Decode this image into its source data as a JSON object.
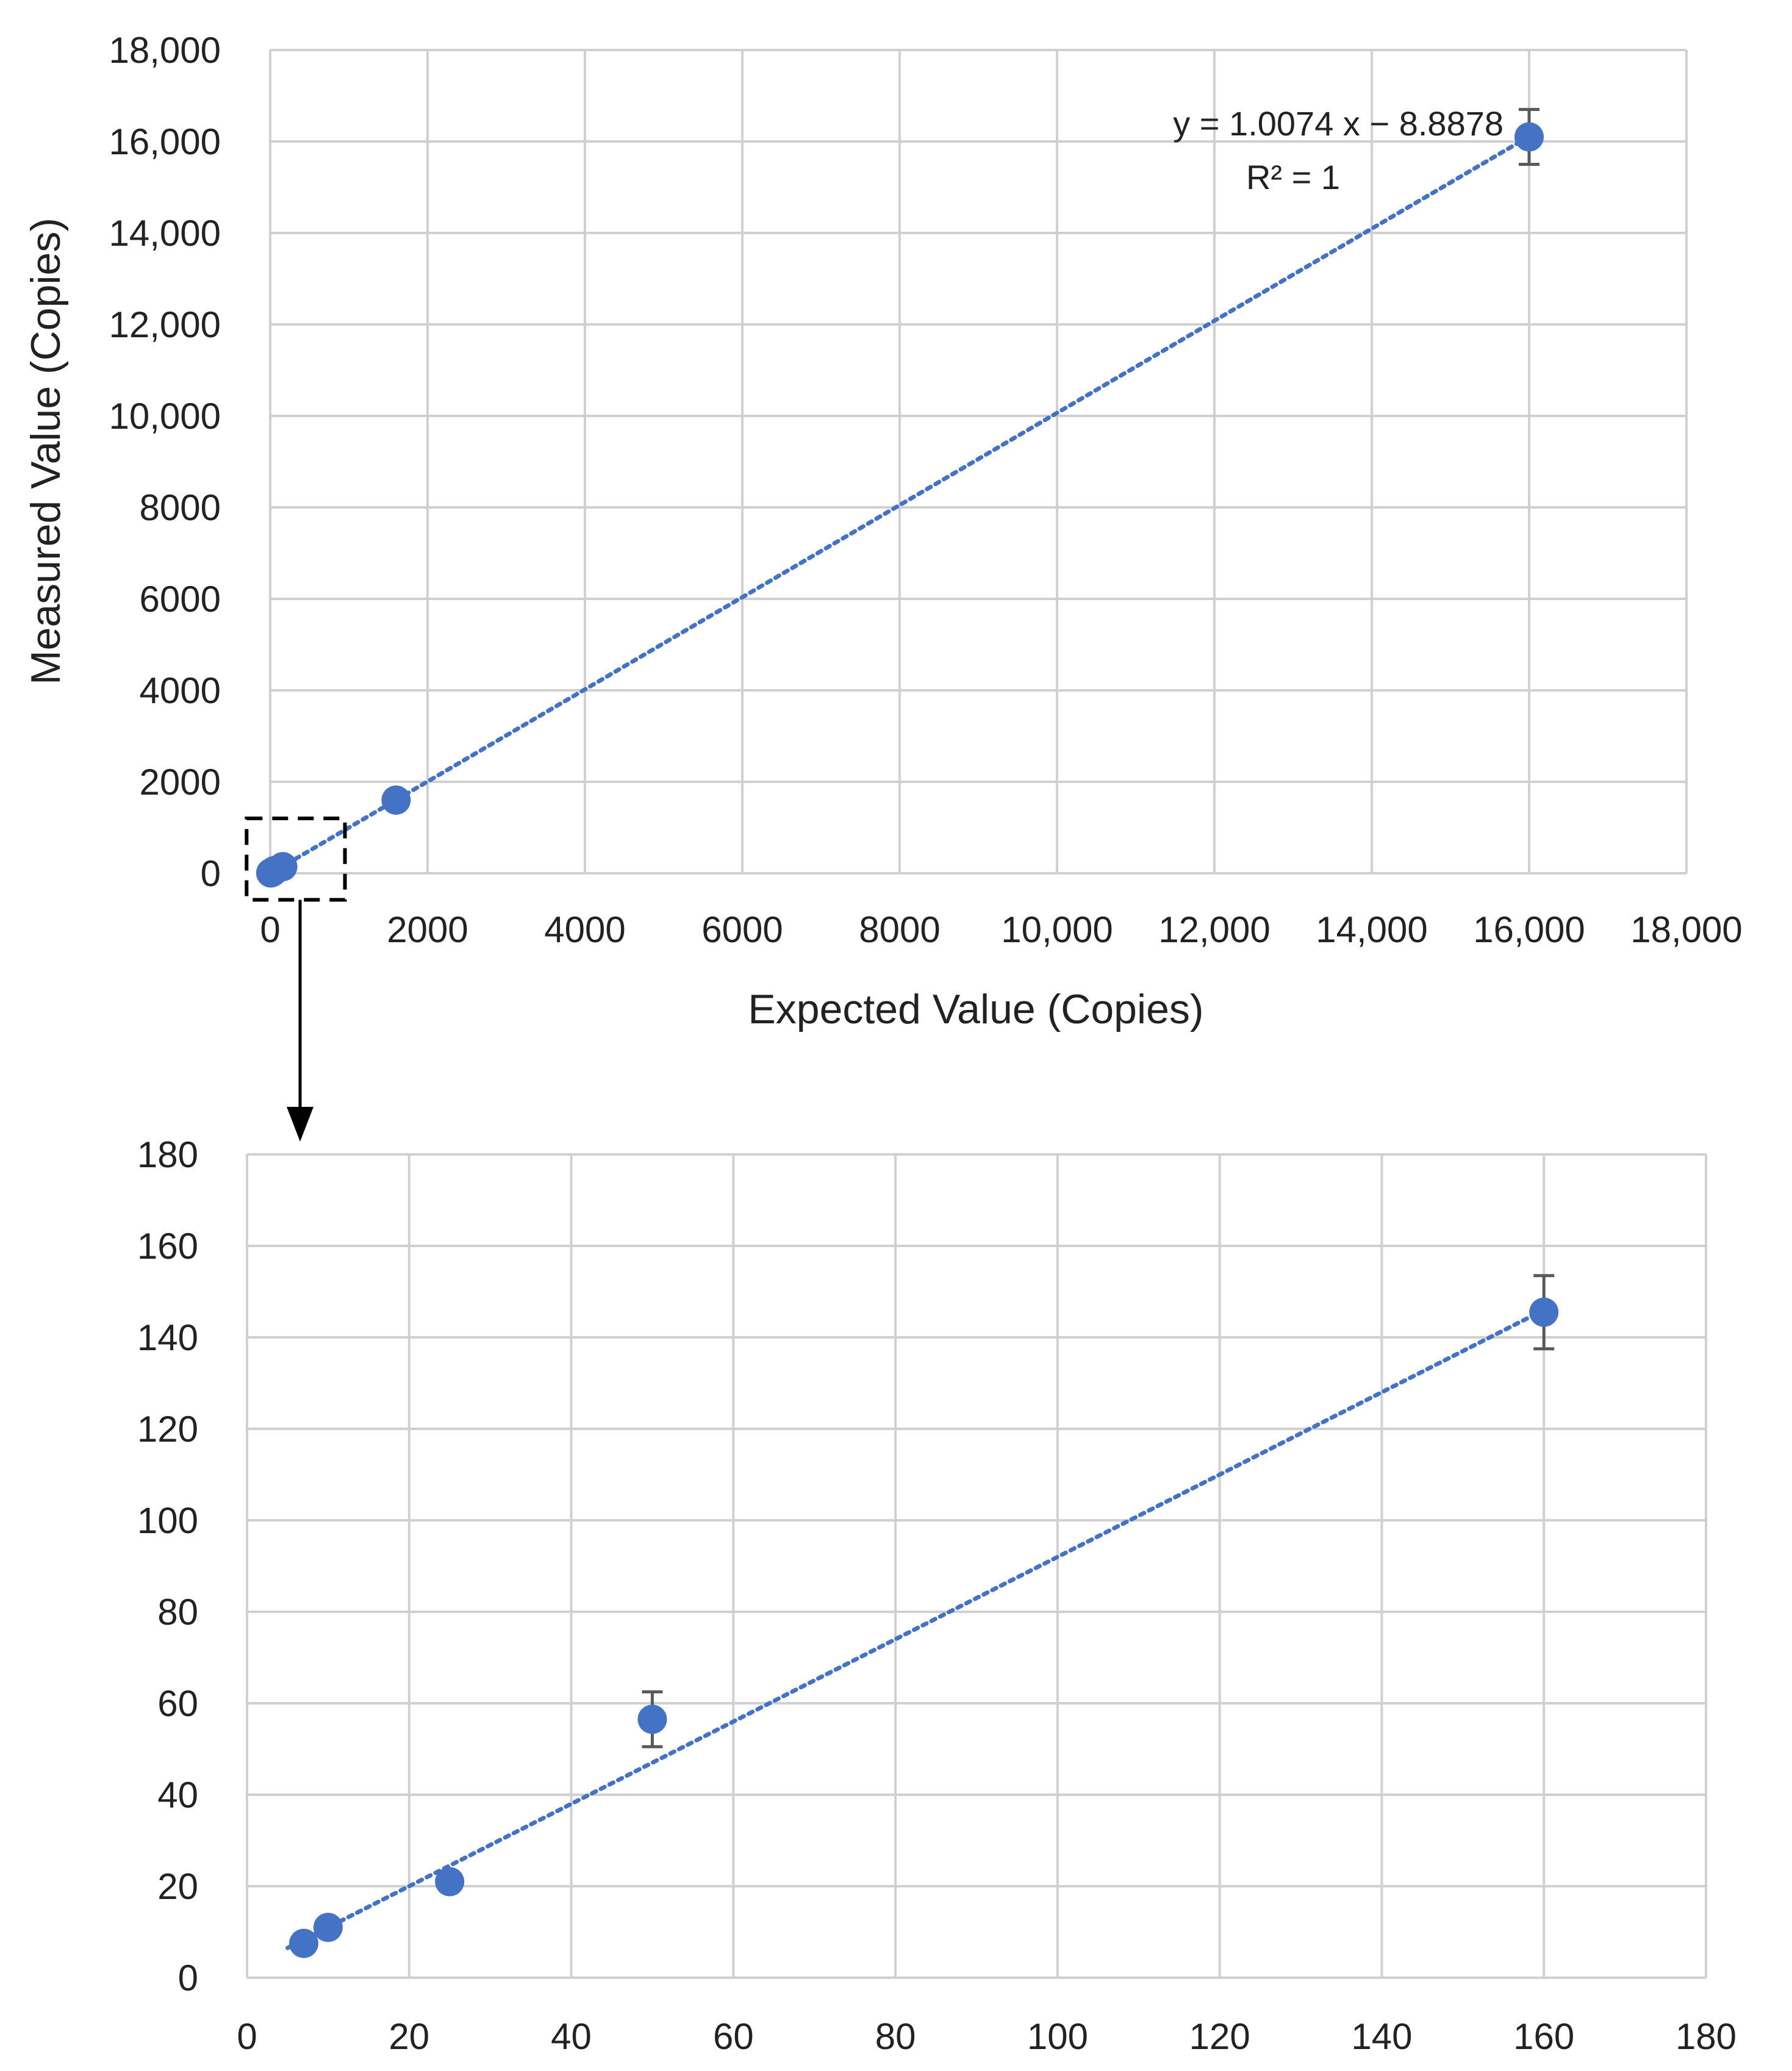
{
  "chart_data": [
    {
      "type": "scatter",
      "title": "",
      "xlabel": "Expected Value (Copies)",
      "ylabel": "Measured Value (Copies)",
      "xlim": [
        0,
        18000
      ],
      "ylim": [
        0,
        18000
      ],
      "x_ticks": [
        "0",
        "2000",
        "4000",
        "6000",
        "8000",
        "10,000",
        "12,000",
        "14,000",
        "16,000",
        "18,000"
      ],
      "y_ticks": [
        "0",
        "2000",
        "4000",
        "6000",
        "8000",
        "10,000",
        "12,000",
        "14,000",
        "16,000",
        "18,000"
      ],
      "grid": true,
      "marker_color": "#4472C4",
      "trendline_color": "#4472C4",
      "errorbar_color": "#595959",
      "points": [
        {
          "x": 7,
          "y": 8,
          "err": 0
        },
        {
          "x": 10,
          "y": 11,
          "err": 0
        },
        {
          "x": 25,
          "y": 21,
          "err": 0
        },
        {
          "x": 50,
          "y": 56,
          "err": 0
        },
        {
          "x": 160,
          "y": 145,
          "err": 0
        },
        {
          "x": 1600,
          "y": 1600,
          "err": 0
        },
        {
          "x": 16000,
          "y": 16100,
          "err": 600
        }
      ],
      "trendline": {
        "slope": 1.0074,
        "intercept": -8.8878,
        "x_range": [
          0,
          16000
        ]
      },
      "annotations": {
        "equation": "y = 1.0074 x − 8.8878",
        "r2": "R² = 1"
      },
      "zoom_box": {
        "x0": -300,
        "x1": 950,
        "y0": -580,
        "y1": 1200
      }
    },
    {
      "type": "scatter",
      "title": "",
      "xlabel": "",
      "ylabel": "",
      "xlim": [
        0,
        180
      ],
      "ylim": [
        0,
        180
      ],
      "x_ticks": [
        "0",
        "20",
        "40",
        "60",
        "80",
        "100",
        "120",
        "140",
        "160",
        "180"
      ],
      "y_ticks": [
        "0",
        "20",
        "40",
        "60",
        "80",
        "100",
        "120",
        "140",
        "160",
        "180"
      ],
      "grid": true,
      "marker_color": "#4472C4",
      "trendline_color": "#4472C4",
      "errorbar_color": "#595959",
      "points": [
        {
          "x": 7,
          "y": 7.5,
          "err": 0
        },
        {
          "x": 10,
          "y": 11,
          "err": 0
        },
        {
          "x": 25,
          "y": 21,
          "err": 0
        },
        {
          "x": 50,
          "y": 56.5,
          "err": 6
        },
        {
          "x": 160,
          "y": 145.5,
          "err": 8
        }
      ],
      "trendline": {
        "slope": 0.9,
        "intercept": 2,
        "x_range": [
          5,
          160
        ]
      }
    }
  ]
}
